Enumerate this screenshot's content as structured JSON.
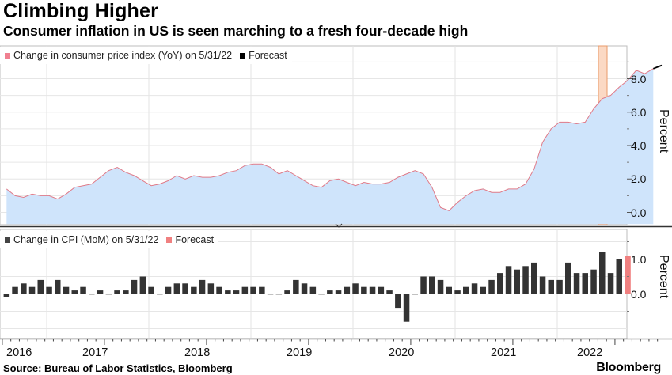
{
  "header": {
    "title": "Climbing Higher",
    "subtitle": "Consumer inflation in US is seen marching to a fresh four-decade high"
  },
  "footer": {
    "source": "Source: Bureau of Labor Statistics, Bloomberg",
    "brand": "Bloomberg"
  },
  "colors": {
    "yoy_fill": "#cfe4fb",
    "yoy_line": "#e07a88",
    "mom_bar": "#333333",
    "forecast_mom": "#f08080",
    "forecast_band": "#fbd9c4",
    "forecast_line": "#000000"
  },
  "chart_data": [
    {
      "type": "area",
      "title": "Change in consumer price index (YoY) on 5/31/22",
      "legend": [
        {
          "label": "Change in consumer price index (YoY) on 5/31/22",
          "color": "#e07a88"
        },
        {
          "label": "Forecast",
          "color": "#000000"
        }
      ],
      "ylabel": "Percent",
      "ylim": [
        -0.7,
        10.2
      ],
      "yticks": [
        0.0,
        2.0,
        4.0,
        6.0,
        8.0
      ],
      "ytick_labels": [
        "0.0",
        "2.0",
        "4.0",
        "6.0",
        "8.0"
      ],
      "x_start": "2016-01",
      "values": [
        1.4,
        1.0,
        0.9,
        1.1,
        1.0,
        1.0,
        0.8,
        1.1,
        1.5,
        1.6,
        1.7,
        2.1,
        2.5,
        2.7,
        2.4,
        2.2,
        1.9,
        1.6,
        1.7,
        1.9,
        2.2,
        2.0,
        2.2,
        2.1,
        2.1,
        2.2,
        2.4,
        2.5,
        2.8,
        2.9,
        2.9,
        2.7,
        2.3,
        2.5,
        2.2,
        1.9,
        1.6,
        1.5,
        1.9,
        2.0,
        1.8,
        1.6,
        1.8,
        1.7,
        1.7,
        1.8,
        2.1,
        2.3,
        2.5,
        2.3,
        1.5,
        0.3,
        0.1,
        0.6,
        1.0,
        1.3,
        1.4,
        1.2,
        1.2,
        1.4,
        1.4,
        1.7,
        2.6,
        4.2,
        5.0,
        5.4,
        5.4,
        5.3,
        5.4,
        6.2,
        6.8,
        7.0,
        7.5,
        7.9,
        8.5,
        8.3,
        8.6
      ],
      "forecast": {
        "period": "2022-05",
        "values": [
          8.6,
          8.8
        ]
      }
    },
    {
      "type": "bar",
      "title": "Change in CPI (MoM) on 5/31/22",
      "legend": [
        {
          "label": "Change in CPI (MoM) on 5/31/22",
          "color": "#333333"
        },
        {
          "label": "Forecast",
          "color": "#f08080"
        }
      ],
      "ylabel": "Percent",
      "ylim": [
        -1.0,
        1.7
      ],
      "yticks": [
        0.0,
        1.0
      ],
      "ytick_labels": [
        "0.0",
        "1.0"
      ],
      "x_start": "2016-01",
      "values": [
        -0.1,
        0.2,
        0.3,
        0.2,
        0.4,
        0.2,
        0.4,
        0.2,
        0.1,
        0.2,
        0.0,
        0.1,
        0.0,
        0.1,
        0.1,
        0.4,
        0.5,
        0.2,
        0.0,
        0.2,
        0.3,
        0.3,
        0.2,
        0.4,
        0.3,
        0.2,
        0.1,
        0.1,
        0.2,
        0.2,
        0.2,
        0.0,
        0.0,
        0.1,
        0.4,
        0.3,
        0.2,
        0.0,
        0.1,
        0.1,
        0.2,
        0.3,
        0.2,
        0.2,
        0.2,
        0.1,
        -0.4,
        -0.8,
        0.0,
        0.5,
        0.5,
        0.4,
        0.2,
        0.1,
        0.2,
        0.3,
        0.2,
        0.4,
        0.6,
        0.8,
        0.7,
        0.8,
        0.9,
        0.5,
        0.4,
        0.4,
        0.9,
        0.6,
        0.6,
        0.7,
        1.2,
        0.6,
        1.0
      ],
      "forecast": {
        "period": "2022-05",
        "value": 1.1
      }
    }
  ],
  "x_axis": {
    "labels": [
      "2016",
      "2017",
      "2018",
      "2019",
      "2020",
      "2021",
      "2022"
    ]
  }
}
